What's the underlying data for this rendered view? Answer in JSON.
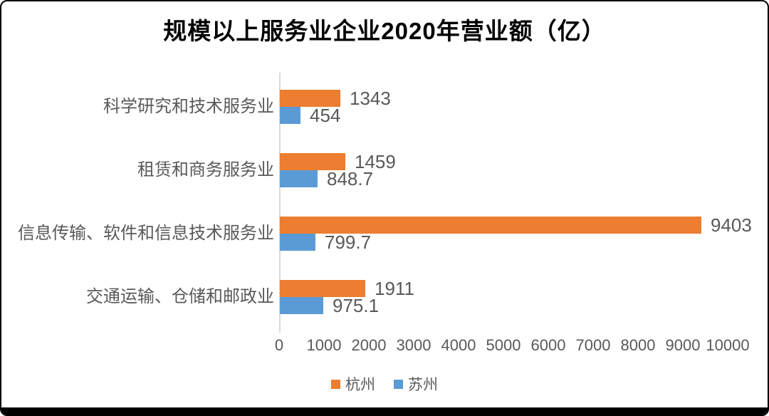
{
  "chart_data": {
    "type": "bar",
    "orientation": "horizontal",
    "title": "规模以上服务业企业2020年营业额（亿）",
    "categories": [
      "科学研究和技术服务业",
      "租赁和商务服务业",
      "信息传输、软件和信息技术服务业",
      "交通运输、仓储和邮政业"
    ],
    "series": [
      {
        "name": "杭州",
        "color": "#ED7D31",
        "values": [
          1343,
          1459,
          9403,
          1911
        ]
      },
      {
        "name": "苏州",
        "color": "#5B9BD5",
        "values": [
          454,
          848.7,
          799.7,
          975.1
        ]
      }
    ],
    "value_labels": [
      "1343",
      "454",
      "1459",
      "848.7",
      "9403",
      "799.7",
      "1911",
      "975.1"
    ],
    "x_ticks": [
      "0",
      "1000",
      "2000",
      "3000",
      "4000",
      "5000",
      "6000",
      "7000",
      "8000",
      "9000",
      "10000"
    ],
    "xlim": [
      0,
      10000
    ],
    "grid": false,
    "legend_position": "bottom",
    "colors": {
      "hangzhou_orange": "#ED7D31",
      "suzhou_blue": "#5B9BD5",
      "axis_line": "#D9D9D9",
      "text_gray": "#595959",
      "title_black": "#000000",
      "frame_border": "#000000"
    }
  }
}
